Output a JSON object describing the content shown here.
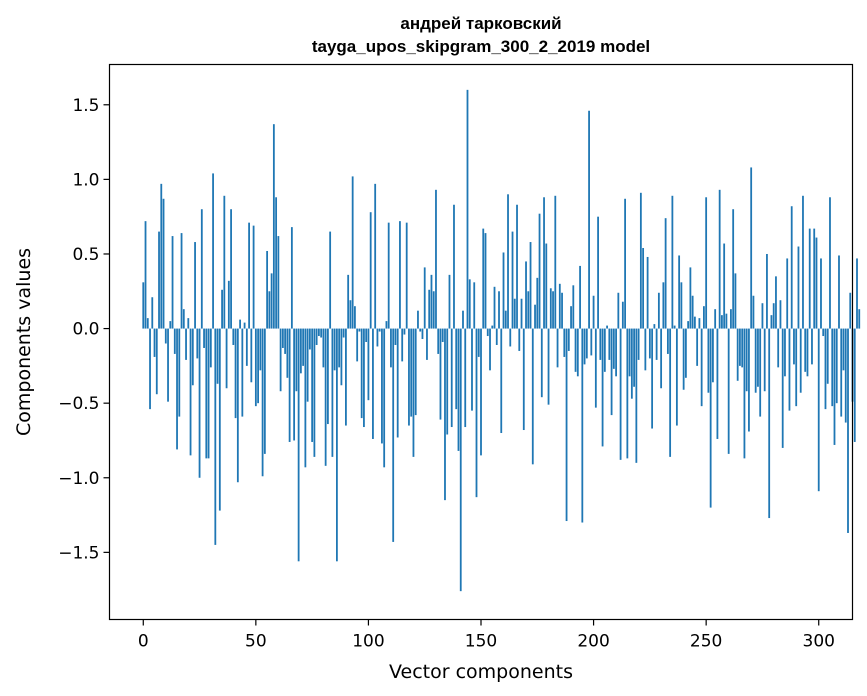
{
  "chart_data": {
    "type": "bar",
    "title_lines": [
      "андрей тарковский",
      "tayga_upos_skipgram_300_2_2019 model"
    ],
    "xlabel": "Vector components",
    "ylabel": "Components values",
    "xlim": [
      -15,
      315
    ],
    "ylim": [
      -1.95,
      1.77
    ],
    "xticks": [
      0,
      50,
      100,
      150,
      200,
      250,
      300
    ],
    "yticks": [
      -1.5,
      -1.0,
      -0.5,
      0.0,
      0.5,
      1.0,
      1.5
    ],
    "ytick_labels": [
      "−1.5",
      "−1.0",
      "−0.5",
      "0.0",
      "0.5",
      "1.0",
      "1.5"
    ],
    "bar_color": "#1f77b4",
    "grid": false,
    "values": [
      0.31,
      0.72,
      0.07,
      -0.54,
      0.21,
      -0.19,
      -0.44,
      0.65,
      0.97,
      0.87,
      -0.1,
      -0.49,
      0.05,
      0.62,
      -0.17,
      -0.81,
      -0.59,
      0.64,
      0.13,
      -0.21,
      0.07,
      -0.85,
      -0.38,
      0.58,
      -0.2,
      -1.0,
      0.8,
      -0.13,
      -0.87,
      -0.87,
      -0.26,
      1.04,
      -1.45,
      -0.37,
      -1.22,
      0.26,
      0.89,
      -0.4,
      0.32,
      0.8,
      -0.11,
      -0.6,
      -1.03,
      0.06,
      -0.59,
      0.04,
      -0.25,
      0.71,
      -0.36,
      0.69,
      -0.52,
      -0.5,
      -0.28,
      -0.99,
      -0.84,
      0.52,
      0.25,
      0.37,
      1.37,
      0.88,
      0.62,
      -0.42,
      -0.13,
      -0.17,
      -0.33,
      -0.76,
      0.68,
      -0.75,
      -0.42,
      -1.56,
      -0.3,
      -0.25,
      -0.93,
      -0.49,
      -0.14,
      -0.76,
      -0.86,
      -0.11,
      -0.05,
      -0.06,
      -0.26,
      -0.92,
      -0.64,
      0.65,
      -0.86,
      -0.28,
      -1.56,
      -0.26,
      -0.38,
      -0.06,
      -0.65,
      0.36,
      0.19,
      1.02,
      0.15,
      -0.22,
      -0.02,
      -0.6,
      -0.66,
      -0.09,
      -0.48,
      0.78,
      -0.74,
      0.97,
      -0.12,
      -0.02,
      -0.77,
      -0.93,
      0.05,
      0.71,
      -0.26,
      -1.43,
      -0.11,
      -0.73,
      0.72,
      -0.22,
      -0.04,
      0.71,
      -0.65,
      -0.59,
      -0.86,
      -0.58,
      0.12,
      -0.02,
      -0.07,
      0.41,
      -0.21,
      0.26,
      0.36,
      0.25,
      0.93,
      -0.17,
      -0.61,
      -0.09,
      -1.15,
      -0.71,
      0.36,
      -0.66,
      0.83,
      -0.54,
      -0.82,
      -1.76,
      0.12,
      -0.66,
      1.6,
      0.33,
      -0.55,
      0.31,
      -1.13,
      -0.19,
      -0.85,
      0.67,
      0.64,
      -0.05,
      -0.28,
      0.02,
      0.28,
      -0.11,
      0.25,
      -0.7,
      0.51,
      0.12,
      0.9,
      -0.12,
      0.65,
      0.2,
      0.83,
      -0.15,
      0.2,
      -0.68,
      0.45,
      0.25,
      0.58,
      -0.91,
      0.16,
      0.34,
      0.77,
      -0.46,
      0.88,
      0.57,
      -0.51,
      0.27,
      0.25,
      0.89,
      -0.26,
      0.3,
      0.24,
      -0.19,
      -1.29,
      -0.15,
      0.15,
      0.29,
      -0.29,
      -0.32,
      0.42,
      -1.3,
      -0.24,
      -0.2,
      1.46,
      -0.18,
      0.22,
      -0.53,
      0.75,
      -0.21,
      -0.79,
      -0.29,
      0.02,
      -0.21,
      -0.58,
      -0.27,
      -0.32,
      0.24,
      -0.88,
      0.18,
      0.87,
      -0.87,
      -0.32,
      -0.47,
      -0.39,
      -0.9,
      -0.21,
      0.91,
      0.54,
      -0.28,
      0.48,
      -0.2,
      -0.67,
      0.03,
      -0.21,
      0.24,
      -0.4,
      0.31,
      0.74,
      -0.17,
      -0.86,
      0.89,
      0.02,
      -0.65,
      0.49,
      0.31,
      -0.41,
      -0.33,
      0.05,
      0.41,
      0.22,
      0.08,
      -0.25,
      0.07,
      -0.52,
      0.15,
      0.88,
      -0.43,
      -1.2,
      -0.36,
      0.13,
      -0.74,
      0.93,
      0.09,
      0.57,
      0.1,
      -0.84,
      0.13,
      0.8,
      0.37,
      -0.35,
      -0.25,
      -0.26,
      -0.87,
      -0.42,
      -0.69,
      1.08,
      0.22,
      -0.43,
      -0.39,
      -0.59,
      0.17,
      -0.42,
      0.5,
      -1.27,
      0.09,
      0.17,
      0.35,
      -0.26,
      0.19,
      -0.8,
      -0.32,
      0.47,
      -0.55,
      0.82,
      -0.24,
      -0.52,
      0.55,
      -0.43,
      0.89,
      -0.29,
      -0.32,
      0.67,
      -0.24,
      0.67,
      0.61,
      -1.09,
      0.47,
      -0.05,
      -0.54,
      -0.37,
      0.88,
      -0.52,
      -0.78,
      -0.5,
      0.49,
      -0.59,
      -0.28,
      -0.63,
      -1.37,
      0.24,
      -0.49,
      -0.76,
      0.47,
      0.13
    ]
  }
}
